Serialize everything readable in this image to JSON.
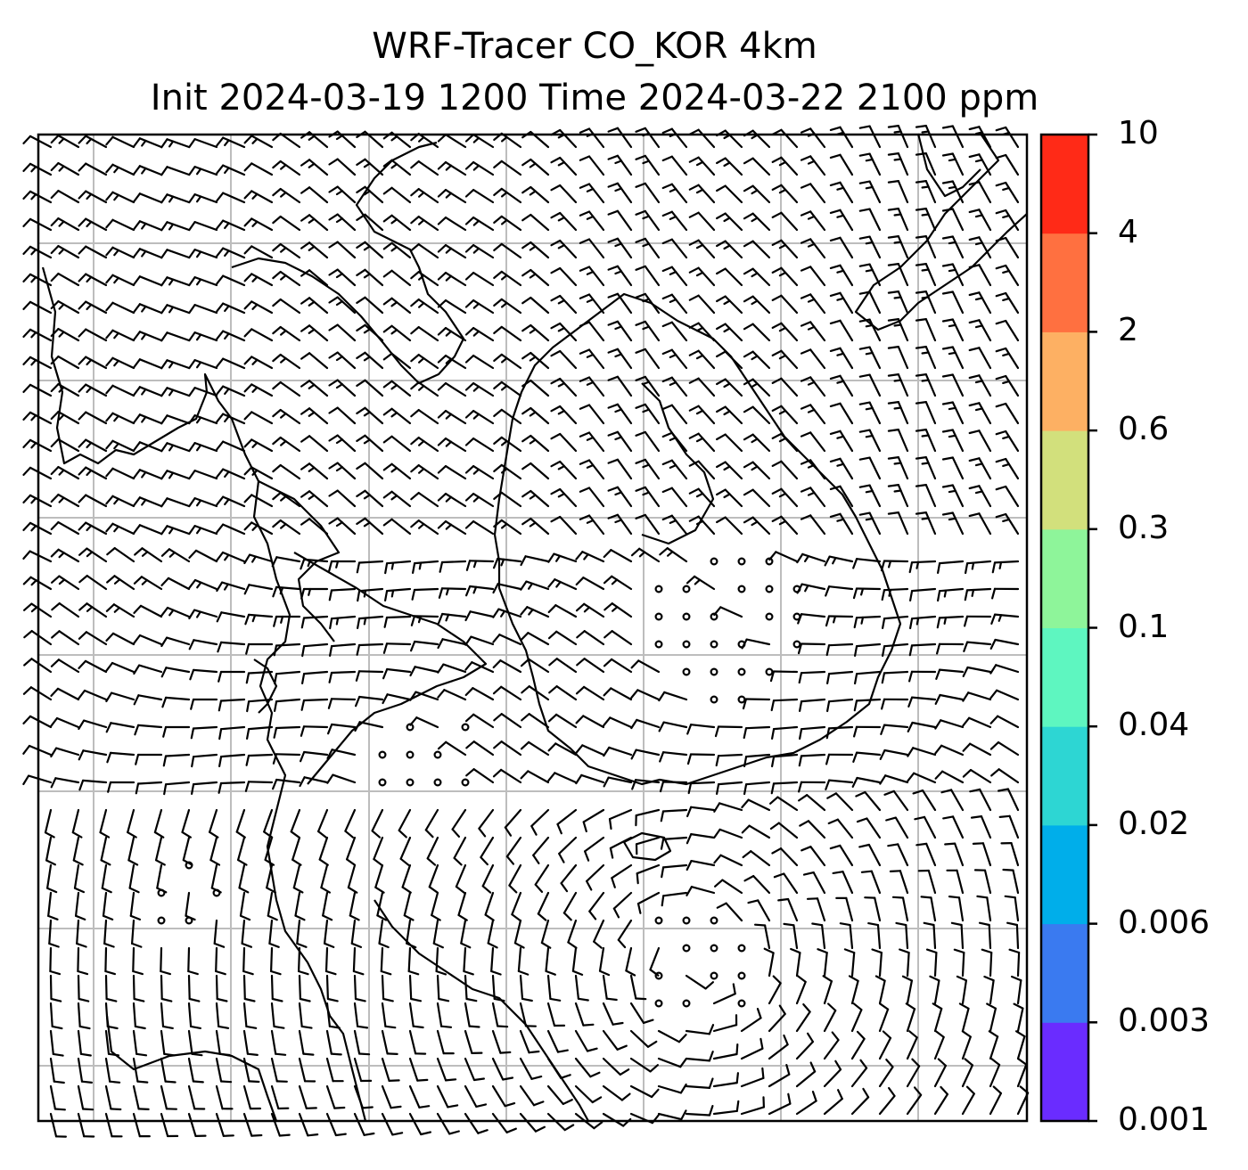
{
  "title": {
    "line1": "WRF-Tracer CO_KOR 4km",
    "line2": "Init 2024-03-19 1200 Time 2024-03-22 2100 ppm"
  },
  "map": {
    "gridlines": "on",
    "background": "#ffffff",
    "coastline_color": "#000000",
    "barb_color": "#000000",
    "grid_color": "#bdbdbd"
  },
  "colorbar": {
    "orientation": "vertical",
    "placement": "right",
    "levels": [
      {
        "label": "0.001",
        "color": "#6a2cff"
      },
      {
        "label": "0.003",
        "color": "#3a7af0"
      },
      {
        "label": "0.006",
        "color": "#00aeea"
      },
      {
        "label": "0.02",
        "color": "#2dd6d3"
      },
      {
        "label": "0.04",
        "color": "#5ef6c0"
      },
      {
        "label": "0.1",
        "color": "#8ef59a"
      },
      {
        "label": "0.3",
        "color": "#d2e07c"
      },
      {
        "label": "0.6",
        "color": "#fdb063"
      },
      {
        "label": "2",
        "color": "#ff7040"
      },
      {
        "label": "4",
        "color": "#ff2a17"
      },
      {
        "label": "10",
        "color": ""
      }
    ]
  }
}
